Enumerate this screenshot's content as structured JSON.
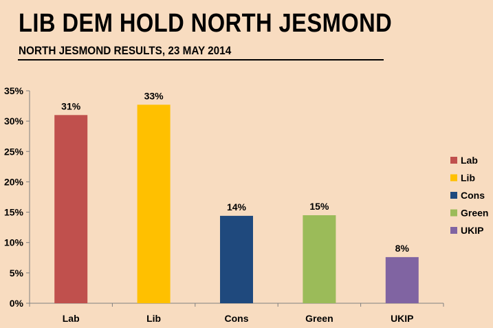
{
  "header": {
    "title": "LIB DEM HOLD NORTH JESMOND",
    "subtitle": "NORTH JESMOND RESULTS, 23 MAY 2014"
  },
  "chart_data": {
    "type": "bar",
    "title": "LIB DEM HOLD NORTH JESMOND",
    "subtitle": "NORTH JESMOND RESULTS, 23 MAY 2014",
    "categories": [
      "Lab",
      "Lib",
      "Cons",
      "Green",
      "UKIP"
    ],
    "values": [
      31,
      32.7,
      14.4,
      14.5,
      7.6
    ],
    "data_labels": [
      "31%",
      "33%",
      "14%",
      "15%",
      "8%"
    ],
    "colors": [
      "#c0504d",
      "#ffc000",
      "#1f497d",
      "#9bbb59",
      "#8064a2"
    ],
    "ylim": [
      0,
      35
    ],
    "yticks": [
      0,
      5,
      10,
      15,
      20,
      25,
      30,
      35
    ],
    "ytick_labels": [
      "0%",
      "5%",
      "10%",
      "15%",
      "20%",
      "25%",
      "30%",
      "35%"
    ],
    "xlabel": "",
    "ylabel": "",
    "grid": false,
    "legend": {
      "placement": "right",
      "entries": [
        "Lab",
        "Lib",
        "Cons",
        "Green",
        "UKIP"
      ]
    }
  }
}
